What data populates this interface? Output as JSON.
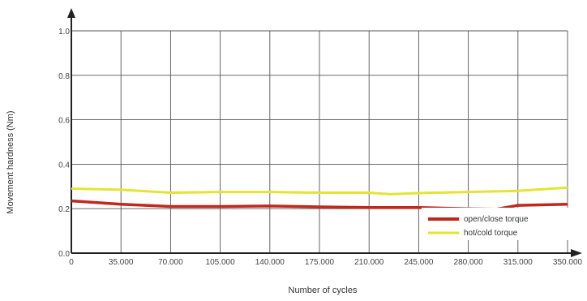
{
  "chart_data": {
    "type": "line",
    "xlabel": "Number of cycles",
    "ylabel": "Movement hardness (Nm)",
    "xlim": [
      0,
      350000
    ],
    "ylim": [
      0,
      1.0
    ],
    "x_ticks": [
      0,
      35000,
      70000,
      105000,
      140000,
      175000,
      210000,
      245000,
      280000,
      315000,
      350000
    ],
    "x_tick_labels": [
      "0",
      "35.000",
      "70.000",
      "105.000",
      "140.000",
      "175.000",
      "210.000",
      "245.000",
      "280.000",
      "315.000",
      "350.000"
    ],
    "y_ticks": [
      0,
      0.2,
      0.4,
      0.6,
      0.8,
      1.0
    ],
    "y_tick_labels": [
      "0.0",
      "0.2",
      "0.4",
      "0.6",
      "0.8",
      "1.0"
    ],
    "grid": true,
    "legend_position": "bottom-right",
    "series": [
      {
        "name": "open/close torque",
        "color": "#c0281c",
        "x": [
          0,
          35000,
          70000,
          105000,
          140000,
          175000,
          210000,
          245000,
          280000,
          300000,
          315000,
          350000
        ],
        "y": [
          0.235,
          0.22,
          0.21,
          0.21,
          0.212,
          0.208,
          0.205,
          0.205,
          0.2,
          0.198,
          0.215,
          0.22
        ]
      },
      {
        "name": "hot/cold torque",
        "color": "#e4e436",
        "x": [
          0,
          35000,
          70000,
          105000,
          140000,
          175000,
          210000,
          225000,
          245000,
          280000,
          315000,
          350000
        ],
        "y": [
          0.29,
          0.285,
          0.272,
          0.275,
          0.275,
          0.272,
          0.272,
          0.265,
          0.27,
          0.275,
          0.28,
          0.295
        ]
      }
    ]
  }
}
